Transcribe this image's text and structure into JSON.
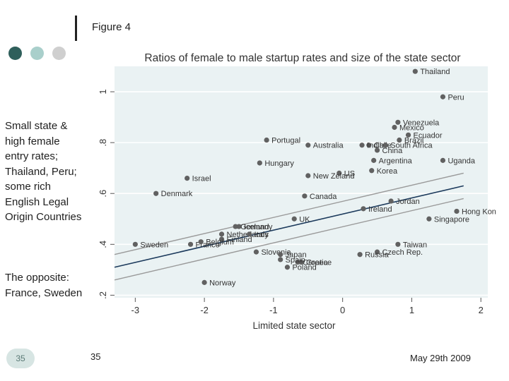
{
  "slide": {
    "title": "Figure 4",
    "sidebar_text_1": "Small state & high female entry rates; Thailand, Peru; some rich English Legal Origin Countries",
    "sidebar_text_2": "The opposite: France, Sweden",
    "page_badge": "35",
    "footer_page": "35",
    "footer_date": "May 29th 2009",
    "dot_colors": [
      "#2f5f5b",
      "#a9cfcb",
      "#cfcfcf"
    ]
  },
  "chart_data": {
    "type": "scatter",
    "title": "Ratios of female to male startup rates and size of the state sector",
    "xlabel": "Limited state sector",
    "ylabel": "",
    "xlim": [
      -3.3,
      2.1
    ],
    "ylim": [
      0.19,
      1.1
    ],
    "xticks": [
      -3,
      -2,
      -1,
      0,
      1,
      2
    ],
    "yticks": [
      0.2,
      0.4,
      0.6,
      0.8,
      1.0
    ],
    "ytick_labels": [
      ".2",
      ".4",
      ".6",
      ".8",
      "1"
    ],
    "grid": true,
    "colors": {
      "plot_bg": "#eaf2f3",
      "point": "#616161",
      "fit_line": "#1c3a5c",
      "ci_line": "#9a9a9a",
      "text": "#333333"
    },
    "fit_line": {
      "x": [
        -3.3,
        1.75
      ],
      "y": [
        0.31,
        0.63
      ]
    },
    "ci_upper": {
      "x": [
        -3.3,
        1.75
      ],
      "y": [
        0.36,
        0.68
      ]
    },
    "ci_lower": {
      "x": [
        -3.3,
        1.75
      ],
      "y": [
        0.26,
        0.58
      ]
    },
    "points": [
      {
        "label": "Thailand",
        "x": 1.05,
        "y": 1.08
      },
      {
        "label": "Peru",
        "x": 1.45,
        "y": 0.98
      },
      {
        "label": "Venezuela",
        "x": 0.8,
        "y": 0.88
      },
      {
        "label": "Mexico",
        "x": 0.75,
        "y": 0.86
      },
      {
        "label": "Ecuador",
        "x": 0.95,
        "y": 0.83
      },
      {
        "label": "Chile",
        "x": 0.38,
        "y": 0.79
      },
      {
        "label": "Brazil",
        "x": 0.82,
        "y": 0.81
      },
      {
        "label": "South Africa",
        "x": 0.62,
        "y": 0.79
      },
      {
        "label": "India",
        "x": 0.28,
        "y": 0.79
      },
      {
        "label": "China",
        "x": 0.5,
        "y": 0.77
      },
      {
        "label": "Portugal",
        "x": -1.1,
        "y": 0.81
      },
      {
        "label": "Australia",
        "x": -0.5,
        "y": 0.79
      },
      {
        "label": "Argentina",
        "x": 0.45,
        "y": 0.73
      },
      {
        "label": "Uganda",
        "x": 1.45,
        "y": 0.73
      },
      {
        "label": "Hungary",
        "x": -1.2,
        "y": 0.72
      },
      {
        "label": "US",
        "x": -0.05,
        "y": 0.68
      },
      {
        "label": "Korea",
        "x": 0.42,
        "y": 0.69
      },
      {
        "label": "New Zeland",
        "x": -0.5,
        "y": 0.67
      },
      {
        "label": "Israel",
        "x": -2.25,
        "y": 0.66
      },
      {
        "label": "Denmark",
        "x": -2.7,
        "y": 0.6
      },
      {
        "label": "Canada",
        "x": -0.55,
        "y": 0.59
      },
      {
        "label": "Jordan",
        "x": 0.7,
        "y": 0.57
      },
      {
        "label": "Ireland",
        "x": 0.3,
        "y": 0.54
      },
      {
        "label": "Hong Kon",
        "x": 1.65,
        "y": 0.53
      },
      {
        "label": "UK",
        "x": -0.7,
        "y": 0.5
      },
      {
        "label": "Singapore",
        "x": 1.25,
        "y": 0.5
      },
      {
        "label": "Iceland",
        "x": -1.5,
        "y": 0.47
      },
      {
        "label": "Germany",
        "x": -1.55,
        "y": 0.47
      },
      {
        "label": "Netherlands",
        "x": -1.75,
        "y": 0.44
      },
      {
        "label": "Italy",
        "x": -1.35,
        "y": 0.44
      },
      {
        "label": "Finland",
        "x": -1.75,
        "y": 0.42
      },
      {
        "label": "Sweden",
        "x": -3.0,
        "y": 0.4
      },
      {
        "label": "France",
        "x": -2.2,
        "y": 0.4
      },
      {
        "label": "Belgium",
        "x": -2.05,
        "y": 0.41
      },
      {
        "label": "Slovenia",
        "x": -1.25,
        "y": 0.37
      },
      {
        "label": "Japan",
        "x": -0.9,
        "y": 0.36
      },
      {
        "label": "Taiwan",
        "x": 0.8,
        "y": 0.4
      },
      {
        "label": "Czech Rep.",
        "x": 0.5,
        "y": 0.37
      },
      {
        "label": "Russia",
        "x": 0.25,
        "y": 0.36
      },
      {
        "label": "Greece",
        "x": -0.6,
        "y": 0.33
      },
      {
        "label": "Croatia",
        "x": -0.65,
        "y": 0.33
      },
      {
        "label": "Spain",
        "x": -0.9,
        "y": 0.34
      },
      {
        "label": "Poland",
        "x": -0.8,
        "y": 0.31
      },
      {
        "label": "Norway",
        "x": -2.0,
        "y": 0.25
      }
    ]
  }
}
